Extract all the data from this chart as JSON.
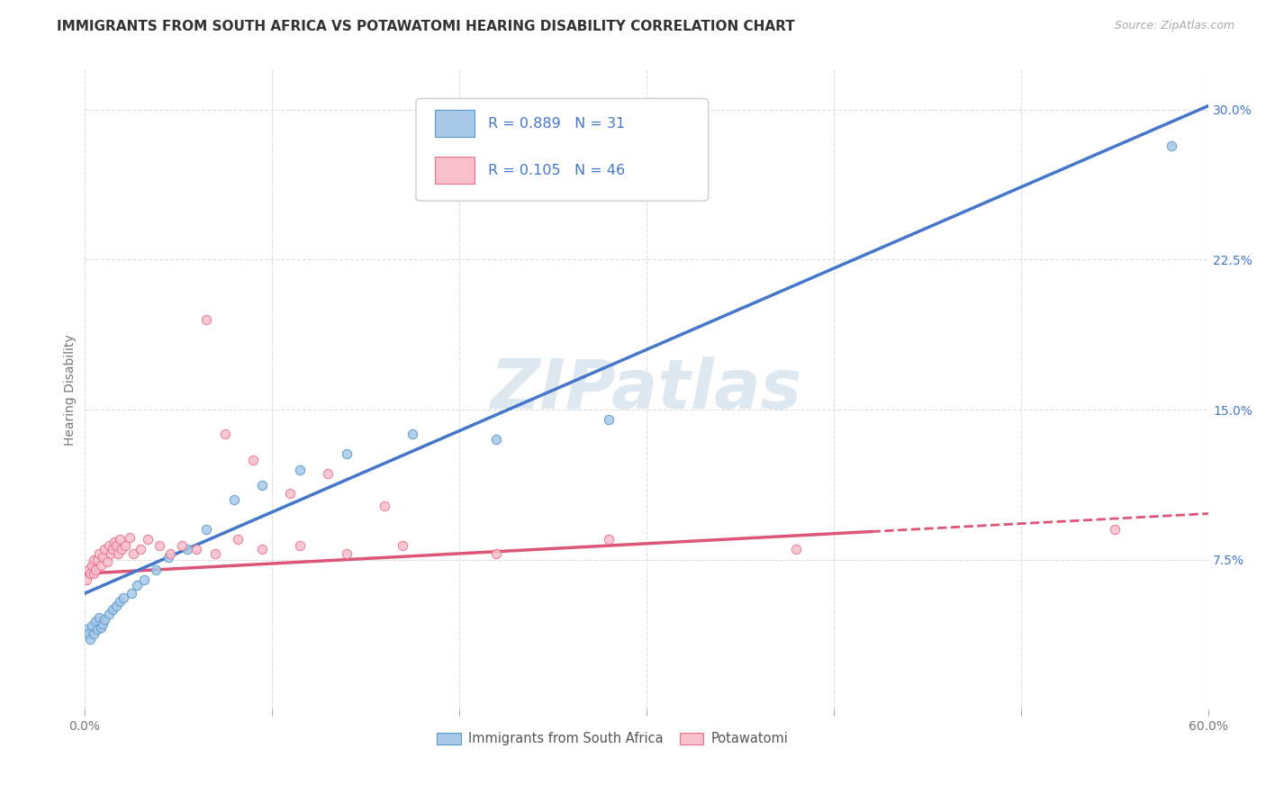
{
  "title": "IMMIGRANTS FROM SOUTH AFRICA VS POTAWATOMI HEARING DISABILITY CORRELATION CHART",
  "source": "Source: ZipAtlas.com",
  "ylabel": "Hearing Disability",
  "xlim": [
    0.0,
    0.6
  ],
  "ylim": [
    0.0,
    0.32
  ],
  "xticks": [
    0.0,
    0.1,
    0.2,
    0.3,
    0.4,
    0.5,
    0.6
  ],
  "xtick_labels_show": [
    "0.0%",
    "",
    "",
    "",
    "",
    "",
    "60.0%"
  ],
  "ytick_positions": [
    0.075,
    0.15,
    0.225,
    0.3
  ],
  "ytick_labels": [
    "7.5%",
    "15.0%",
    "22.5%",
    "30.0%"
  ],
  "blue_fill_color": "#a8c8e8",
  "blue_edge_color": "#5599cc",
  "pink_fill_color": "#f8c0cc",
  "pink_edge_color": "#e87090",
  "blue_line_color": "#4477cc",
  "pink_line_color": "#dd5577",
  "watermark_text": "ZIPatlas",
  "watermark_color": "#dde8f0",
  "legend_R_blue": "R = 0.889",
  "legend_N_blue": "N = 31",
  "legend_R_pink": "R = 0.105",
  "legend_N_pink": "N = 46",
  "legend_label_blue": "Immigrants from South Africa",
  "legend_label_pink": "Potawatomi",
  "blue_scatter_x": [
    0.001,
    0.002,
    0.003,
    0.004,
    0.005,
    0.006,
    0.007,
    0.008,
    0.009,
    0.01,
    0.011,
    0.013,
    0.015,
    0.017,
    0.019,
    0.021,
    0.025,
    0.028,
    0.032,
    0.038,
    0.045,
    0.055,
    0.065,
    0.08,
    0.095,
    0.115,
    0.14,
    0.175,
    0.22,
    0.28,
    0.58
  ],
  "blue_scatter_y": [
    0.04,
    0.038,
    0.035,
    0.042,
    0.038,
    0.044,
    0.04,
    0.046,
    0.041,
    0.043,
    0.045,
    0.048,
    0.05,
    0.052,
    0.054,
    0.056,
    0.058,
    0.062,
    0.065,
    0.07,
    0.076,
    0.08,
    0.09,
    0.105,
    0.112,
    0.12,
    0.128,
    0.138,
    0.135,
    0.145,
    0.282
  ],
  "pink_scatter_x": [
    0.001,
    0.002,
    0.003,
    0.004,
    0.005,
    0.005,
    0.006,
    0.007,
    0.008,
    0.009,
    0.01,
    0.011,
    0.012,
    0.013,
    0.014,
    0.015,
    0.016,
    0.017,
    0.018,
    0.019,
    0.02,
    0.022,
    0.024,
    0.026,
    0.03,
    0.034,
    0.04,
    0.046,
    0.052,
    0.06,
    0.07,
    0.082,
    0.095,
    0.115,
    0.14,
    0.17,
    0.22,
    0.28,
    0.38,
    0.55,
    0.065,
    0.075,
    0.09,
    0.11,
    0.13,
    0.16
  ],
  "pink_scatter_y": [
    0.065,
    0.07,
    0.068,
    0.072,
    0.068,
    0.075,
    0.07,
    0.075,
    0.078,
    0.072,
    0.076,
    0.08,
    0.074,
    0.082,
    0.078,
    0.08,
    0.084,
    0.082,
    0.078,
    0.085,
    0.08,
    0.082,
    0.086,
    0.078,
    0.08,
    0.085,
    0.082,
    0.078,
    0.082,
    0.08,
    0.078,
    0.085,
    0.08,
    0.082,
    0.078,
    0.082,
    0.078,
    0.085,
    0.08,
    0.09,
    0.195,
    0.138,
    0.125,
    0.108,
    0.118,
    0.102
  ],
  "blue_line_x": [
    0.0,
    0.6
  ],
  "blue_line_y": [
    0.058,
    0.302
  ],
  "pink_line_x": [
    0.0,
    0.6
  ],
  "pink_line_y": [
    0.068,
    0.098
  ],
  "grid_color": "#dddddd",
  "background_color": "#ffffff",
  "title_fontsize": 11,
  "axis_fontsize": 10,
  "tick_fontsize": 10,
  "watermark_fontsize": 55,
  "scatter_size": 55,
  "legend_text_color": "#4477cc"
}
